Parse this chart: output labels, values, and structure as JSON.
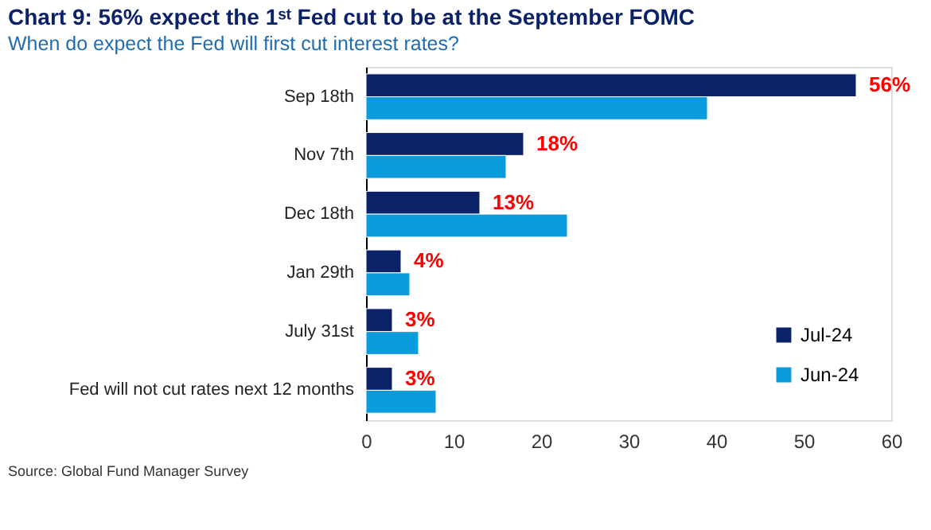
{
  "chart_data": {
    "type": "bar",
    "orientation": "horizontal",
    "title": "Chart 9: 56% expect the 1ˢᵗ Fed cut to be at the September FOMC",
    "subtitle": "When do expect the Fed will first cut interest rates?",
    "categories": [
      "Sep 18th",
      "Nov 7th",
      "Dec 18th",
      "Jan 29th",
      "July 31st",
      "Fed will not cut rates next 12 months"
    ],
    "series": [
      {
        "name": "Jul-24",
        "color": "#0c2268",
        "values": [
          56,
          18,
          13,
          4,
          3,
          3
        ],
        "value_labels": [
          "56%",
          "18%",
          "13%",
          "4%",
          "3%",
          "3%"
        ]
      },
      {
        "name": "Jun-24",
        "color": "#0a9bdc",
        "values": [
          39,
          16,
          23,
          5,
          6,
          8
        ]
      }
    ],
    "xlim": [
      0,
      60
    ],
    "xticks": [
      0,
      10,
      20,
      30,
      40,
      50,
      60
    ],
    "grid": false,
    "legend": "bottom right",
    "annotations": [
      "Source: Global Fund Manager Survey"
    ]
  }
}
